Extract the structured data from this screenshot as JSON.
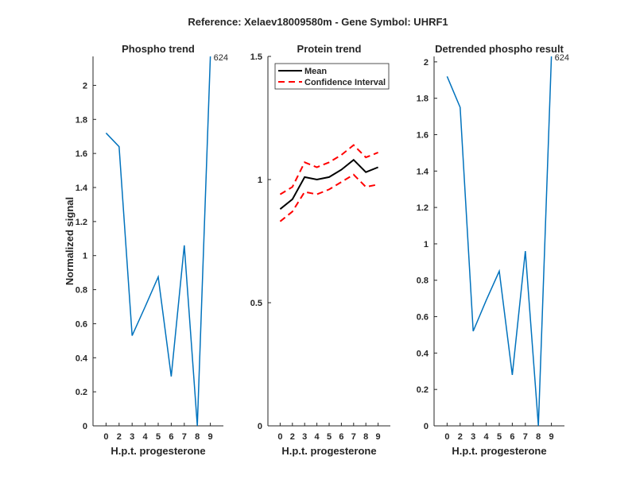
{
  "title": "Reference:  Xelaev18009580m - Gene Symbol:  UHRF1",
  "colors": {
    "line": "#0072BD",
    "mean": "#000000",
    "ci": "#FF0000",
    "axis": "#262626"
  },
  "chart_data": [
    {
      "type": "line",
      "title": "Phospho trend",
      "xlabel": "H.p.t. progesterone",
      "ylabel": "Normalized signal",
      "categories": [
        "0",
        "2",
        "3",
        "4",
        "5",
        "6",
        "7",
        "8",
        "9"
      ],
      "xlim": [
        0,
        10
      ],
      "ylim": [
        0,
        2.17
      ],
      "yticks": [
        "0",
        "0.2",
        "0.4",
        "0.6",
        "0.8",
        "1",
        "1.2",
        "1.4",
        "1.6",
        "1.8",
        "2"
      ],
      "series": [
        {
          "name": "phospho",
          "values": [
            1.72,
            1.64,
            0.53,
            0.7,
            0.875,
            0.29,
            1.06,
            0,
            2.17
          ]
        }
      ],
      "annotation": "624"
    },
    {
      "type": "line",
      "title": "Protein trend",
      "xlabel": "H.p.t. progesterone",
      "ylabel": "",
      "categories": [
        "0",
        "2",
        "3",
        "4",
        "5",
        "6",
        "7",
        "8",
        "9"
      ],
      "xlim": [
        0,
        10
      ],
      "ylim": [
        0,
        1.5
      ],
      "yticks": [
        "0",
        "0.5",
        "1",
        "1.5"
      ],
      "legend": {
        "placement": "top-left",
        "mean_label": "Mean",
        "ci_label": "Confidence Interval"
      },
      "series": [
        {
          "name": "Mean",
          "values": [
            0.88,
            0.92,
            1.01,
            1.0,
            1.01,
            1.04,
            1.08,
            1.03,
            1.05
          ]
        },
        {
          "name": "CI upper",
          "values": [
            0.94,
            0.97,
            1.07,
            1.05,
            1.07,
            1.1,
            1.14,
            1.09,
            1.11
          ]
        },
        {
          "name": "CI lower",
          "values": [
            0.83,
            0.87,
            0.95,
            0.94,
            0.96,
            0.99,
            1.02,
            0.97,
            0.98
          ]
        }
      ]
    },
    {
      "type": "line",
      "title": "Detrended phospho result",
      "xlabel": "H.p.t. progesterone",
      "ylabel": "",
      "categories": [
        "0",
        "2",
        "3",
        "4",
        "5",
        "6",
        "7",
        "8",
        "9"
      ],
      "xlim": [
        0,
        10
      ],
      "ylim": [
        0,
        2.03
      ],
      "yticks": [
        "0",
        "0.2",
        "0.4",
        "0.6",
        "0.8",
        "1",
        "1.2",
        "1.4",
        "1.6",
        "1.8",
        "2"
      ],
      "series": [
        {
          "name": "detrended",
          "values": [
            1.92,
            1.75,
            0.52,
            0.69,
            0.85,
            0.28,
            0.96,
            0,
            2.03
          ]
        }
      ],
      "annotation": "624"
    }
  ]
}
